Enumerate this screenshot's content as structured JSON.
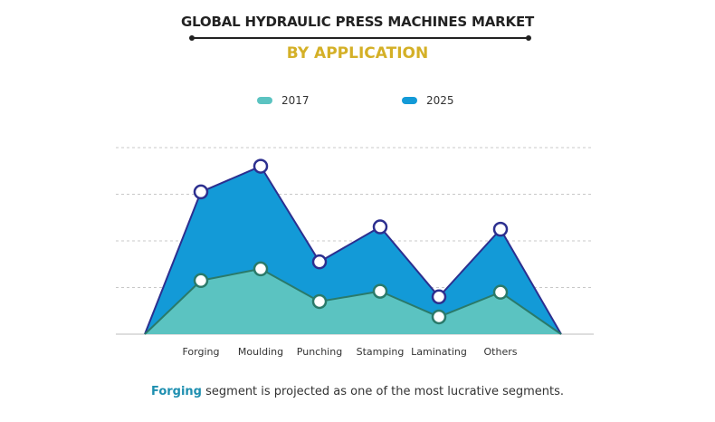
{
  "title": "GLOBAL HYDRAULIC PRESS MACHINES MARKET",
  "subtitle": "BY APPLICATION",
  "colors": {
    "s2017": "#5bc3c1",
    "s2025": "#139ad7",
    "line2017": "#2a7a6a",
    "line2025": "#2c2f8f",
    "accent": "#d4b027"
  },
  "footer": {
    "highlight": "Forging",
    "text": " segment is projected as one of the most lucrative segments."
  },
  "chart_data": {
    "type": "area",
    "categories": [
      "Forging",
      "Moulding",
      "Punching",
      "Stamping",
      "Laminating",
      "Others"
    ],
    "series": [
      {
        "name": "2017",
        "values": [
          1.15,
          1.4,
          0.7,
          0.92,
          0.37,
          0.9
        ]
      },
      {
        "name": "2025",
        "values": [
          3.05,
          3.6,
          1.55,
          2.3,
          0.8,
          2.25
        ]
      }
    ],
    "ylim": [
      0,
      4
    ],
    "grid": true,
    "legend": "top-center"
  }
}
